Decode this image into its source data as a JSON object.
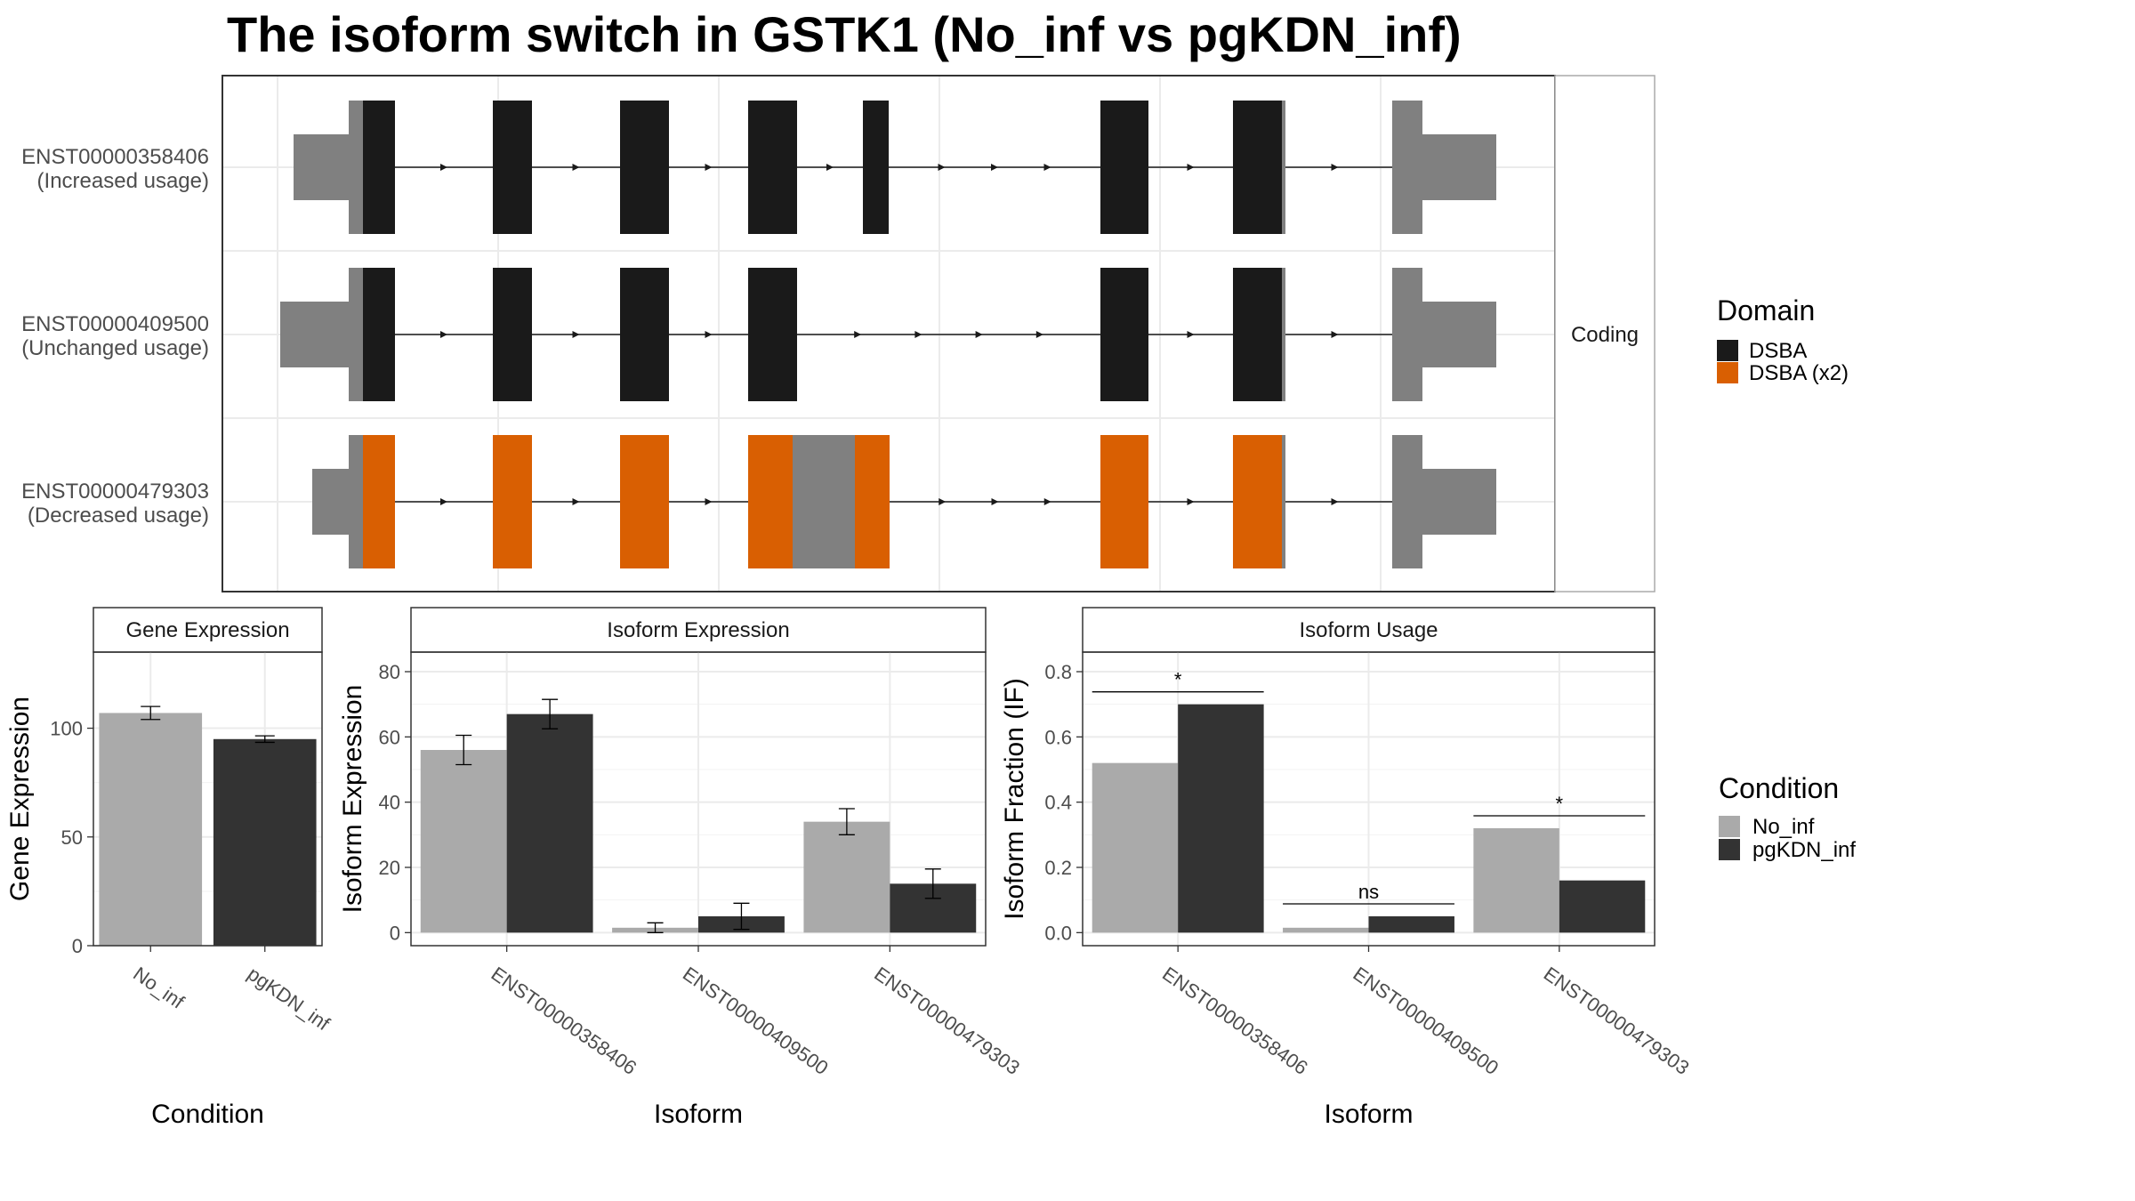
{
  "title": "The isoform switch in GSTK1 (No_inf vs pgKDN_inf)",
  "chart_data": [
    {
      "type": "gene_structure",
      "facet_label": "Coding",
      "isoforms": [
        {
          "id": "ENST00000358406",
          "usage": "(Increased usage)"
        },
        {
          "id": "ENST00000409500",
          "usage": "(Unchanged usage)"
        },
        {
          "id": "ENST00000479303",
          "usage": "(Decreased usage)"
        }
      ],
      "legend": {
        "title": "Domain",
        "items": [
          {
            "label": "DSBA",
            "color": "#1a1a1a"
          },
          {
            "label": "DSBA (x2)",
            "color": "#d95f02"
          }
        ]
      },
      "noncoding_color": "#808080"
    },
    {
      "type": "bar",
      "panel_title": "Gene Expression",
      "xlabel": "Condition",
      "ylabel": "Gene Expression",
      "categories": [
        "No_inf",
        "pgKDN_inf"
      ],
      "values": [
        107,
        95
      ],
      "errors": [
        3,
        1.5
      ],
      "colors": [
        "#aaaaaa",
        "#333333"
      ],
      "ylim": [
        0,
        135
      ],
      "yticks": [
        0,
        50,
        100
      ]
    },
    {
      "type": "bar",
      "panel_title": "Isoform Expression",
      "xlabel": "Isoform",
      "ylabel": "Isoform Expression",
      "categories": [
        "ENST00000358406",
        "ENST00000409500",
        "ENST00000479303"
      ],
      "series": [
        {
          "name": "No_inf",
          "values": [
            56,
            1.5,
            34
          ],
          "errors": [
            4.5,
            1.5,
            4
          ],
          "color": "#aaaaaa"
        },
        {
          "name": "pgKDN_inf",
          "values": [
            67,
            5,
            15
          ],
          "errors": [
            4.5,
            4,
            4.5
          ],
          "color": "#333333"
        }
      ],
      "ylim": [
        -4,
        86
      ],
      "yticks": [
        0,
        20,
        40,
        60,
        80
      ]
    },
    {
      "type": "bar",
      "panel_title": "Isoform Usage",
      "xlabel": "Isoform",
      "ylabel": "Isoform Fraction (IF)",
      "categories": [
        "ENST00000358406",
        "ENST00000409500",
        "ENST00000479303"
      ],
      "series": [
        {
          "name": "No_inf",
          "values": [
            0.52,
            0.015,
            0.32
          ],
          "color": "#aaaaaa"
        },
        {
          "name": "pgKDN_inf",
          "values": [
            0.7,
            0.05,
            0.16
          ],
          "color": "#333333"
        }
      ],
      "significance": [
        "*",
        "ns",
        "*"
      ],
      "ylim": [
        -0.04,
        0.86
      ],
      "yticks": [
        "0.0",
        "0.2",
        "0.4",
        "0.6",
        "0.8"
      ]
    }
  ],
  "condition_legend": {
    "title": "Condition",
    "items": [
      {
        "label": "No_inf",
        "color": "#aaaaaa"
      },
      {
        "label": "pgKDN_inf",
        "color": "#333333"
      }
    ]
  }
}
